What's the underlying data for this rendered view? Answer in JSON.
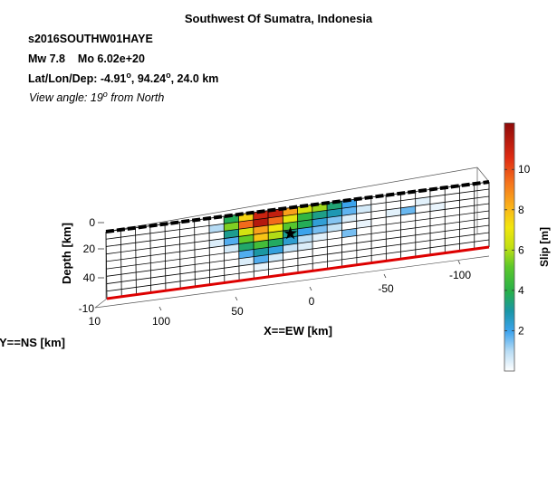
{
  "chart_data": {
    "type": "heatmap",
    "title": "Southwest Of Sumatra, Indonesia",
    "event_id": "s2016SOUTHW01HAYE",
    "magnitude_line": {
      "mw_label": "Mw 7.8",
      "mo_label": "Mo 6.02e+20"
    },
    "location_line": {
      "prefix": "Lat/Lon/Dep: ",
      "lat": "-4.91",
      "lon": "94.24",
      "dep": "24.0 km",
      "deg": "o"
    },
    "view_line": {
      "prefix": "View angle:  ",
      "angle": "19",
      "deg": "o",
      "suffix": " from North"
    },
    "xlabel": "X==EW [km]",
    "ylabel": "Y==NS [km]",
    "zlabel": "Depth [km]",
    "x_ticks": [
      "100",
      "50",
      "0",
      "-50",
      "-100"
    ],
    "y_ticks": [
      "-10",
      "10"
    ],
    "z_ticks": [
      "0",
      "20",
      "40"
    ],
    "colorbar": {
      "label": "Slip [m]",
      "range": [
        0,
        12.3
      ],
      "ticks": [
        "2",
        "4",
        "6",
        "8",
        "10"
      ],
      "tick_values": [
        2,
        4,
        6,
        8,
        10
      ]
    },
    "grid": {
      "columns": 26,
      "rows": 9
    },
    "slip_cells": [
      {
        "col": 8,
        "row": 0,
        "slip": 3.8
      },
      {
        "col": 9,
        "row": 0,
        "slip": 7.5
      },
      {
        "col": 10,
        "row": 0,
        "slip": 11.0
      },
      {
        "col": 11,
        "row": 0,
        "slip": 11.2
      },
      {
        "col": 12,
        "row": 0,
        "slip": 8.5
      },
      {
        "col": 13,
        "row": 0,
        "slip": 6.5
      },
      {
        "col": 14,
        "row": 0,
        "slip": 5.8
      },
      {
        "col": 15,
        "row": 0,
        "slip": 3.5
      },
      {
        "col": 16,
        "row": 0,
        "slip": 2.0
      },
      {
        "col": 7,
        "row": 1,
        "slip": 1.0
      },
      {
        "col": 8,
        "row": 1,
        "slip": 5.5
      },
      {
        "col": 9,
        "row": 1,
        "slip": 9.5
      },
      {
        "col": 10,
        "row": 1,
        "slip": 11.5
      },
      {
        "col": 11,
        "row": 1,
        "slip": 9.5
      },
      {
        "col": 12,
        "row": 1,
        "slip": 6.8
      },
      {
        "col": 13,
        "row": 1,
        "slip": 4.2
      },
      {
        "col": 14,
        "row": 1,
        "slip": 3.3
      },
      {
        "col": 15,
        "row": 1,
        "slip": 2.8
      },
      {
        "col": 16,
        "row": 1,
        "slip": 1.7
      },
      {
        "col": 17,
        "row": 1,
        "slip": 0.6
      },
      {
        "col": 21,
        "row": 1,
        "slip": 0.4
      },
      {
        "col": 8,
        "row": 2,
        "slip": 3.2
      },
      {
        "col": 9,
        "row": 2,
        "slip": 6.5
      },
      {
        "col": 10,
        "row": 2,
        "slip": 8.5
      },
      {
        "col": 11,
        "row": 2,
        "slip": 7.2
      },
      {
        "col": 12,
        "row": 2,
        "slip": 5.0
      },
      {
        "col": 13,
        "row": 2,
        "slip": 3.8
      },
      {
        "col": 14,
        "row": 2,
        "slip": 2.3
      },
      {
        "col": 15,
        "row": 2,
        "slip": 1.4
      },
      {
        "col": 16,
        "row": 2,
        "slip": 0.5
      },
      {
        "col": 19,
        "row": 2,
        "slip": 0.4
      },
      {
        "col": 20,
        "row": 2,
        "slip": 1.6
      },
      {
        "col": 22,
        "row": 2,
        "slip": 0.3
      },
      {
        "col": 7,
        "row": 3,
        "slip": 0.5
      },
      {
        "col": 8,
        "row": 3,
        "slip": 1.8
      },
      {
        "col": 9,
        "row": 3,
        "slip": 5.2
      },
      {
        "col": 10,
        "row": 3,
        "slip": 7.8
      },
      {
        "col": 11,
        "row": 3,
        "slip": 6.0
      },
      {
        "col": 12,
        "row": 3,
        "slip": 3.2
      },
      {
        "col": 13,
        "row": 3,
        "slip": 2.0
      },
      {
        "col": 14,
        "row": 3,
        "slip": 1.5
      },
      {
        "col": 15,
        "row": 3,
        "slip": 0.8
      },
      {
        "col": 17,
        "row": 3,
        "slip": 0.3
      },
      {
        "col": 8,
        "row": 4,
        "slip": 0.6
      },
      {
        "col": 9,
        "row": 4,
        "slip": 3.6
      },
      {
        "col": 10,
        "row": 4,
        "slip": 4.6
      },
      {
        "col": 11,
        "row": 4,
        "slip": 3.7
      },
      {
        "col": 12,
        "row": 4,
        "slip": 2.4
      },
      {
        "col": 13,
        "row": 4,
        "slip": 0.9
      },
      {
        "col": 14,
        "row": 4,
        "slip": 0.4
      },
      {
        "col": 16,
        "row": 4,
        "slip": 1.5
      },
      {
        "col": 9,
        "row": 5,
        "slip": 1.8
      },
      {
        "col": 10,
        "row": 5,
        "slip": 3.0
      },
      {
        "col": 11,
        "row": 5,
        "slip": 2.2
      },
      {
        "col": 12,
        "row": 5,
        "slip": 0.8
      },
      {
        "col": 13,
        "row": 5,
        "slip": 0.5
      },
      {
        "col": 9,
        "row": 6,
        "slip": 0.5
      },
      {
        "col": 10,
        "row": 6,
        "slip": 1.8
      },
      {
        "col": 11,
        "row": 6,
        "slip": 0.6
      },
      {
        "col": 10,
        "row": 7,
        "slip": 0.3
      }
    ],
    "hypocenter": {
      "col": 12,
      "row": 3
    },
    "colors": {
      "trace_top": "#000000",
      "trace_bottom": "#dd0000",
      "grid": "#000000"
    }
  }
}
